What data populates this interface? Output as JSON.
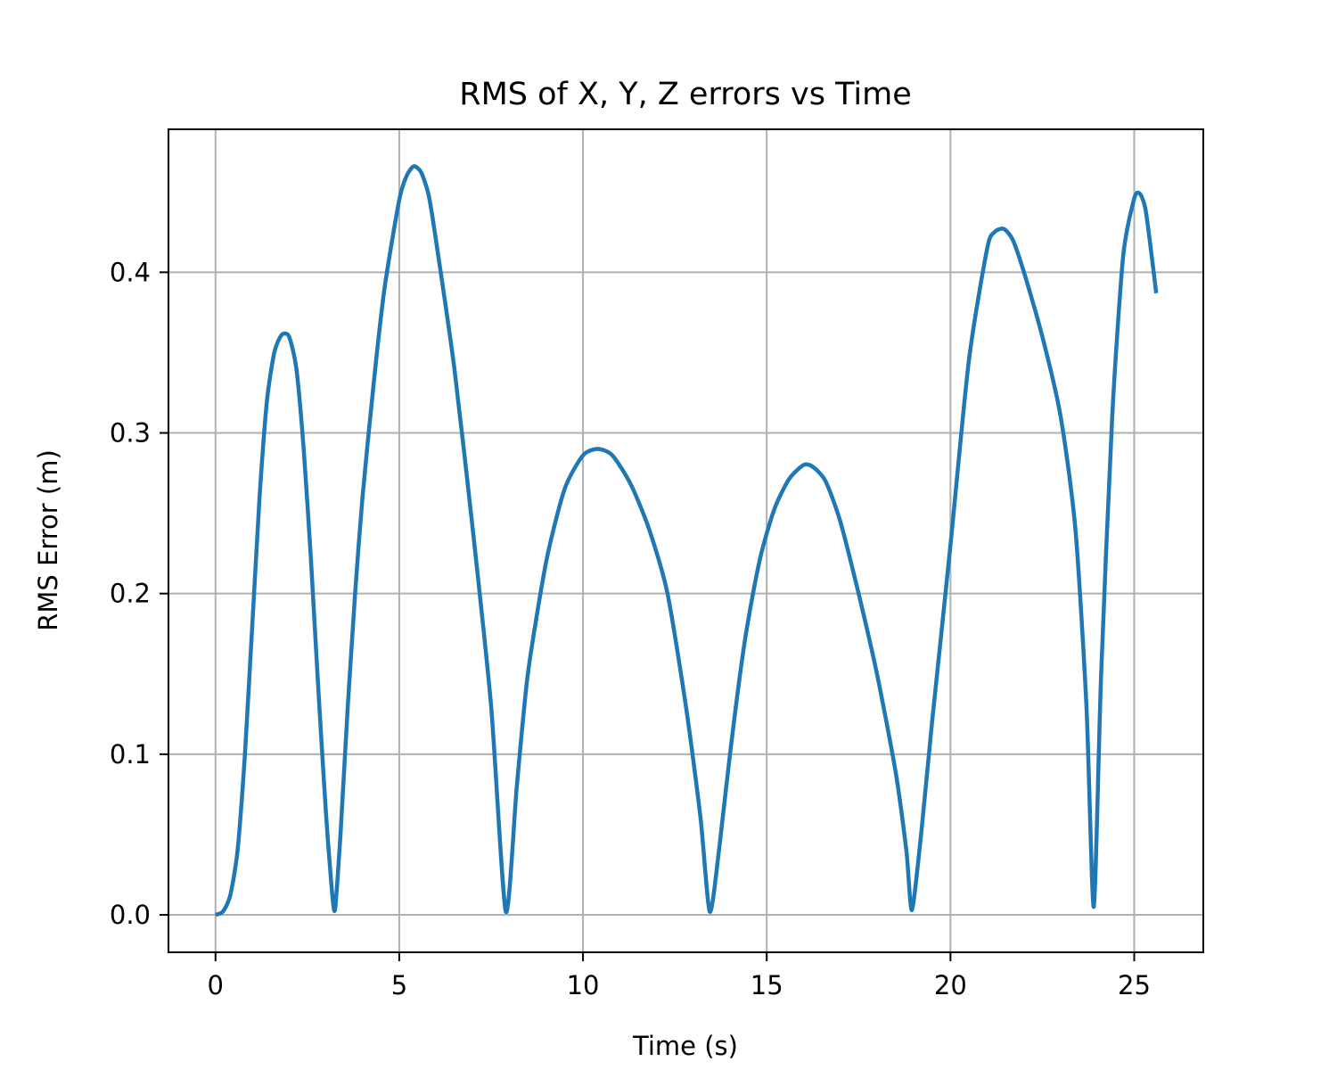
{
  "chart_data": {
    "type": "line",
    "title": "RMS of X, Y, Z errors vs Time",
    "xlabel": "Time (s)",
    "ylabel": "RMS Error (m)",
    "xlim": [
      -1.28,
      26.88
    ],
    "ylim": [
      -0.0233,
      0.489
    ],
    "xticks": [
      0,
      5,
      10,
      15,
      20,
      25
    ],
    "xtick_labels": [
      "0",
      "5",
      "10",
      "15",
      "20",
      "25"
    ],
    "yticks": [
      0.0,
      0.1,
      0.2,
      0.3,
      0.4
    ],
    "ytick_labels": [
      "0.0",
      "0.1",
      "0.2",
      "0.3",
      "0.4"
    ],
    "grid": true,
    "legend": "none",
    "series": [
      {
        "color": "#1f77b4",
        "x": [
          0,
          0.2,
          0.4,
          0.6,
          0.8,
          1.0,
          1.2,
          1.4,
          1.6,
          1.8,
          2.0,
          2.2,
          2.4,
          2.6,
          2.8,
          3.0,
          3.15,
          3.25,
          3.4,
          3.6,
          3.8,
          4.0,
          4.3,
          4.6,
          5.0,
          5.2,
          5.4,
          5.6,
          5.8,
          6.0,
          6.5,
          7.0,
          7.5,
          7.9,
          8.2,
          8.5,
          9.0,
          9.5,
          10.0,
          10.4,
          10.8,
          11.3,
          11.8,
          12.3,
          12.8,
          13.2,
          13.45,
          13.7,
          14.0,
          14.4,
          14.8,
          15.2,
          15.6,
          16.0,
          16.25,
          16.6,
          17.0,
          17.5,
          18.0,
          18.5,
          18.8,
          18.95,
          19.2,
          19.5,
          20.0,
          20.5,
          21.0,
          21.2,
          21.45,
          21.7,
          22.0,
          22.5,
          23.0,
          23.4,
          23.7,
          23.9,
          24.1,
          24.4,
          24.7,
          25.0,
          25.15,
          25.3,
          25.45,
          25.6
        ],
        "y": [
          0.0,
          0.002,
          0.012,
          0.04,
          0.1,
          0.18,
          0.26,
          0.32,
          0.35,
          0.361,
          0.36,
          0.34,
          0.29,
          0.22,
          0.14,
          0.065,
          0.02,
          0.003,
          0.05,
          0.13,
          0.2,
          0.26,
          0.33,
          0.39,
          0.445,
          0.46,
          0.466,
          0.462,
          0.448,
          0.42,
          0.34,
          0.24,
          0.13,
          0.002,
          0.08,
          0.15,
          0.22,
          0.265,
          0.286,
          0.29,
          0.286,
          0.268,
          0.24,
          0.2,
          0.13,
          0.06,
          0.002,
          0.04,
          0.1,
          0.17,
          0.22,
          0.252,
          0.271,
          0.28,
          0.279,
          0.27,
          0.245,
          0.2,
          0.15,
          0.09,
          0.04,
          0.003,
          0.05,
          0.12,
          0.23,
          0.345,
          0.415,
          0.425,
          0.427,
          0.42,
          0.4,
          0.36,
          0.31,
          0.24,
          0.13,
          0.005,
          0.15,
          0.31,
          0.41,
          0.446,
          0.449,
          0.44,
          0.415,
          0.387
        ]
      }
    ]
  }
}
